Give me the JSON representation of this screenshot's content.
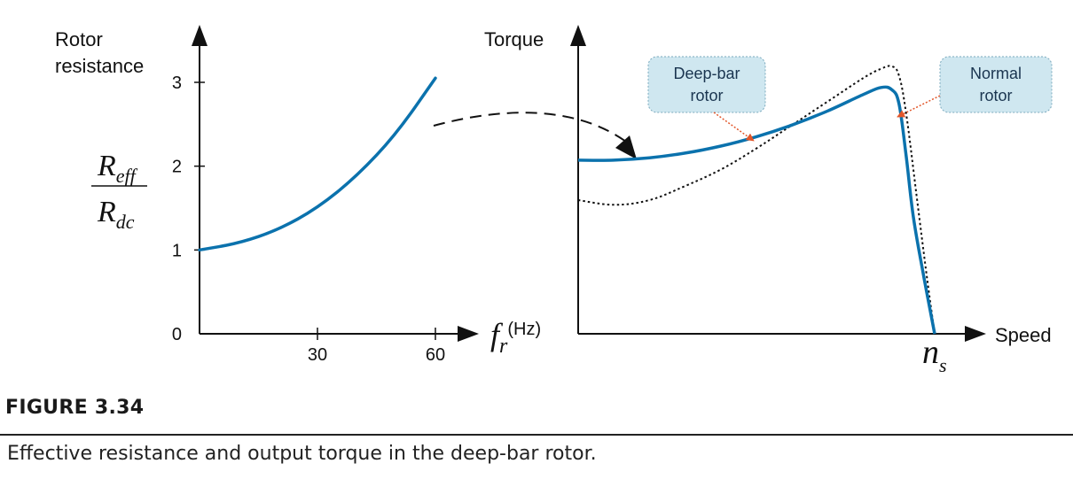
{
  "chart_data": [
    {
      "type": "line",
      "ylabel_line1": "Rotor",
      "ylabel_line2": "resistance",
      "ratio_numerator": "R",
      "ratio_numerator_sub": "eff",
      "ratio_denominator": "R",
      "ratio_denominator_sub": "dc",
      "xlabel_symbol": "f",
      "xlabel_sub": "r",
      "xlabel_unit": "(Hz)",
      "xlim": [
        0,
        60
      ],
      "ylim": [
        0,
        3
      ],
      "x_ticks": [
        30,
        60
      ],
      "y_ticks": [
        0,
        1,
        2,
        3
      ],
      "tick_labels_x": [
        "30",
        "60"
      ],
      "tick_labels_y": [
        "0",
        "1",
        "2",
        "3"
      ],
      "series": [
        {
          "color": "#0b72ad",
          "x": [
            0,
            10,
            20,
            30,
            40,
            50,
            60
          ],
          "y": [
            1.0,
            1.08,
            1.24,
            1.5,
            1.88,
            2.38,
            3.05
          ]
        }
      ]
    },
    {
      "type": "line",
      "ylabel": "Torque",
      "xlabel": "Speed",
      "x_marker_symbol": "n",
      "x_marker_sub": "s",
      "series": [
        {
          "name": "Deep-bar rotor",
          "style": "solid",
          "color": "#0b72ad",
          "x": [
            0,
            0.1,
            0.2,
            0.3,
            0.4,
            0.5,
            0.6,
            0.7,
            0.8,
            0.85,
            0.88,
            0.9,
            0.92,
            0.94,
            0.97,
            1.0
          ],
          "y": [
            0.74,
            0.74,
            0.75,
            0.77,
            0.8,
            0.84,
            0.89,
            0.95,
            1.02,
            1.05,
            1.04,
            0.98,
            0.76,
            0.5,
            0.24,
            0.0
          ]
        },
        {
          "name": "Normal rotor",
          "style": "dotted",
          "color": "#111111",
          "x": [
            0,
            0.1,
            0.2,
            0.3,
            0.4,
            0.5,
            0.6,
            0.7,
            0.8,
            0.85,
            0.88,
            0.9,
            0.92,
            0.95,
            0.98,
            1.0
          ],
          "y": [
            0.57,
            0.55,
            0.57,
            0.63,
            0.7,
            0.79,
            0.89,
            0.99,
            1.09,
            1.13,
            1.14,
            1.1,
            0.94,
            0.58,
            0.22,
            0.0
          ]
        }
      ],
      "callouts": [
        {
          "lines": [
            "Deep-bar",
            "rotor"
          ]
        },
        {
          "lines": [
            "Normal",
            "rotor"
          ]
        }
      ]
    }
  ],
  "caption": {
    "label": "FIGURE 3.34",
    "text": "Effective resistance and output torque in the deep-bar rotor."
  },
  "colors": {
    "curve": "#0b72ad",
    "callout_fill": "#cfe7f0",
    "callout_arrow": "#e2572b"
  }
}
